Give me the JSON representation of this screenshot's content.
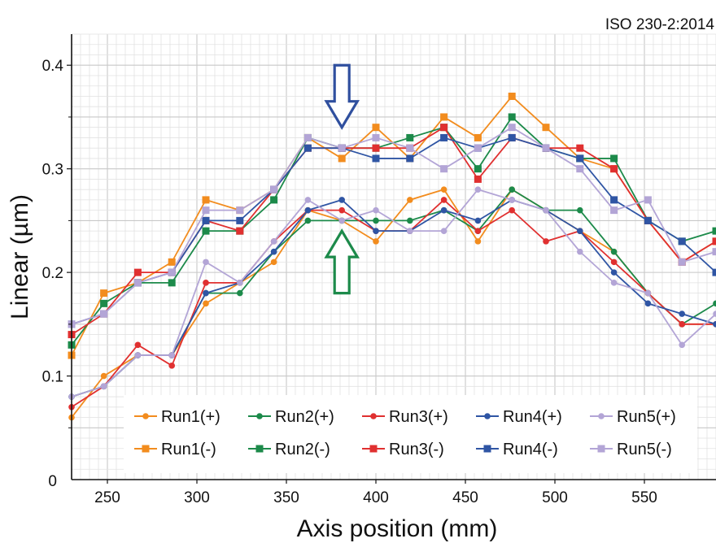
{
  "standard_label": "ISO 230-2:2014",
  "chart_data": {
    "type": "line",
    "title": "",
    "xlabel": "Axis position (mm)",
    "ylabel": "Linear (µm)",
    "xlim": [
      230,
      590
    ],
    "ylim": [
      0,
      0.43
    ],
    "x_ticks": [
      250,
      300,
      350,
      400,
      450,
      500,
      550
    ],
    "y_ticks": [
      0.1,
      0.2,
      0.3,
      0.4
    ],
    "y_zero_label": "0",
    "grid": true,
    "legend_position": "bottom",
    "x": [
      230,
      248,
      267,
      286,
      305,
      324,
      343,
      362,
      381,
      400,
      419,
      438,
      457,
      476,
      495,
      514,
      533,
      552,
      571,
      590
    ],
    "series": [
      {
        "name": "Run1(+)",
        "color": "#f28c1e",
        "marker": "circle",
        "values": [
          0.06,
          0.1,
          0.12,
          0.12,
          0.17,
          0.19,
          0.21,
          0.26,
          0.25,
          0.23,
          0.27,
          0.28,
          0.23,
          0.28,
          0.26,
          0.24,
          0.22,
          0.18,
          0.15,
          0.15
        ]
      },
      {
        "name": "Run2(+)",
        "color": "#1c8a4a",
        "marker": "circle",
        "values": [
          0.08,
          0.09,
          0.12,
          0.12,
          0.18,
          0.18,
          0.22,
          0.25,
          0.25,
          0.25,
          0.25,
          0.26,
          0.24,
          0.28,
          0.26,
          0.26,
          0.22,
          0.18,
          0.15,
          0.17
        ]
      },
      {
        "name": "Run3(+)",
        "color": "#e03030",
        "marker": "circle",
        "values": [
          0.07,
          0.09,
          0.13,
          0.11,
          0.19,
          0.19,
          0.23,
          0.26,
          0.26,
          0.24,
          0.24,
          0.27,
          0.24,
          0.26,
          0.23,
          0.24,
          0.21,
          0.18,
          0.15,
          0.15
        ]
      },
      {
        "name": "Run4(+)",
        "color": "#2f55a4",
        "marker": "circle",
        "values": [
          0.08,
          0.09,
          0.12,
          0.12,
          0.18,
          0.19,
          0.22,
          0.26,
          0.27,
          0.24,
          0.24,
          0.26,
          0.25,
          0.27,
          0.26,
          0.24,
          0.2,
          0.17,
          0.16,
          0.15
        ]
      },
      {
        "name": "Run5(+)",
        "color": "#b3a5d6",
        "marker": "circle",
        "values": [
          0.08,
          0.09,
          0.12,
          0.12,
          0.21,
          0.19,
          0.23,
          0.27,
          0.25,
          0.26,
          0.24,
          0.24,
          0.28,
          0.27,
          0.26,
          0.22,
          0.19,
          0.18,
          0.13,
          0.16
        ]
      },
      {
        "name": "Run1(-)",
        "color": "#f28c1e",
        "marker": "square",
        "values": [
          0.12,
          0.18,
          0.19,
          0.21,
          0.27,
          0.26,
          0.28,
          0.33,
          0.31,
          0.34,
          0.31,
          0.35,
          0.33,
          0.37,
          0.34,
          0.31,
          0.3,
          0.25,
          0.21,
          0.23
        ]
      },
      {
        "name": "Run2(-)",
        "color": "#1c8a4a",
        "marker": "square",
        "values": [
          0.13,
          0.17,
          0.19,
          0.19,
          0.24,
          0.24,
          0.27,
          0.33,
          0.32,
          0.32,
          0.33,
          0.34,
          0.3,
          0.35,
          0.32,
          0.31,
          0.31,
          0.25,
          0.23,
          0.24
        ]
      },
      {
        "name": "Run3(-)",
        "color": "#e03030",
        "marker": "square",
        "values": [
          0.14,
          0.16,
          0.2,
          0.2,
          0.25,
          0.24,
          0.28,
          0.32,
          0.32,
          0.32,
          0.32,
          0.34,
          0.29,
          0.33,
          0.32,
          0.32,
          0.3,
          0.25,
          0.21,
          0.23
        ]
      },
      {
        "name": "Run4(-)",
        "color": "#2f55a4",
        "marker": "square",
        "values": [
          0.15,
          0.16,
          0.19,
          0.2,
          0.25,
          0.25,
          0.28,
          0.32,
          0.32,
          0.31,
          0.31,
          0.33,
          0.32,
          0.33,
          0.32,
          0.31,
          0.27,
          0.25,
          0.23,
          0.2
        ]
      },
      {
        "name": "Run5(-)",
        "color": "#b3a5d6",
        "marker": "square",
        "values": [
          0.15,
          0.16,
          0.19,
          0.2,
          0.26,
          0.26,
          0.28,
          0.33,
          0.32,
          0.33,
          0.32,
          0.3,
          0.32,
          0.34,
          0.32,
          0.3,
          0.26,
          0.27,
          0.21,
          0.22
        ]
      }
    ],
    "annotations": [
      {
        "type": "arrow",
        "direction": "down",
        "color": "#2f4f9e",
        "x": 381,
        "y_range": [
          0.34,
          0.4
        ]
      },
      {
        "type": "arrow",
        "direction": "up",
        "color": "#1c8a4a",
        "x": 381,
        "y_range": [
          0.18,
          0.24
        ]
      }
    ]
  }
}
